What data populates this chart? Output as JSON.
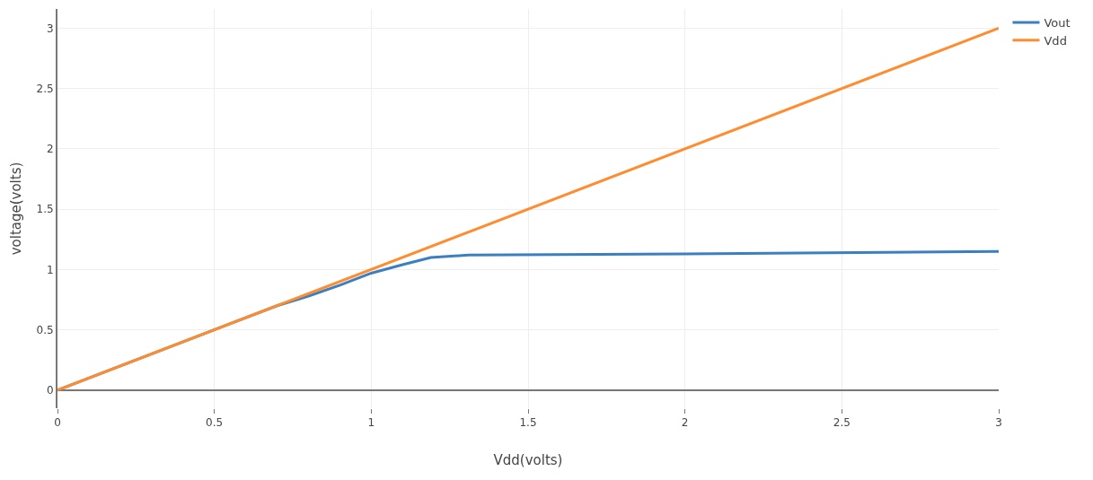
{
  "chart_data": {
    "type": "line",
    "xlabel": "Vdd(volts)",
    "ylabel": "voltage(volts)",
    "xlim": [
      0,
      3
    ],
    "xticks": [
      0,
      0.5,
      1,
      1.5,
      2,
      2.5,
      3
    ],
    "ylim": [
      -0.15,
      3.16
    ],
    "yticks": [
      0,
      0.5,
      1,
      1.5,
      2,
      2.5,
      3
    ],
    "grid": true,
    "legend": "top right",
    "marker": "none",
    "line_style": "solid",
    "series": [
      {
        "name": "Vout",
        "color": "#3a7fc1",
        "x": [
          0,
          0.7,
          0.8,
          0.9,
          1,
          1.1,
          1.19,
          1.31,
          2,
          3
        ],
        "values": [
          0,
          0.7,
          0.78,
          0.87,
          0.97,
          1.04,
          1.1,
          1.12,
          1.13,
          1.15
        ]
      },
      {
        "name": "Vdd",
        "color": "#ff8c2e",
        "x": [
          0,
          3
        ],
        "values": [
          0,
          3
        ]
      }
    ]
  }
}
